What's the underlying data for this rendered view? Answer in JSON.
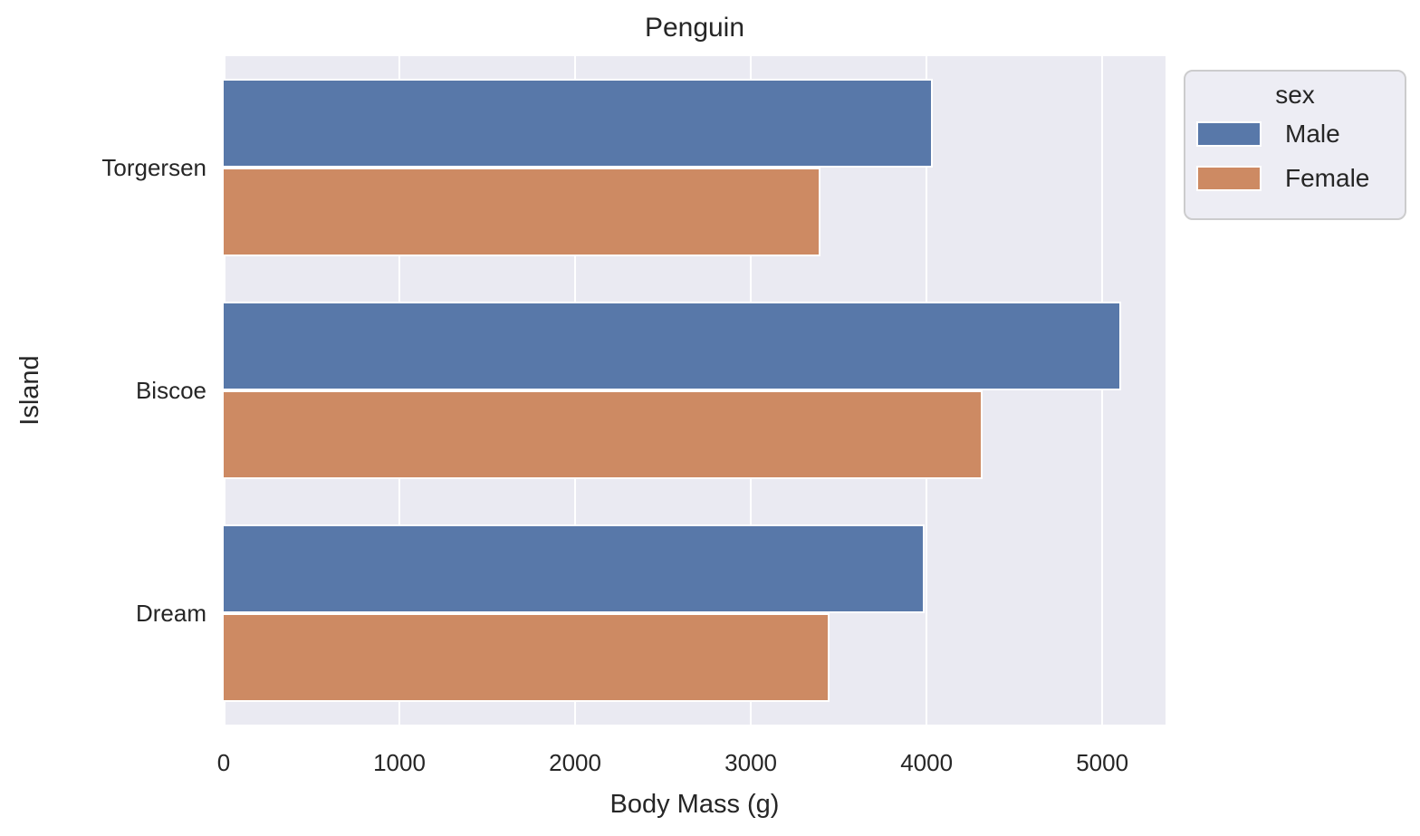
{
  "chart_data": {
    "type": "bar",
    "orientation": "horizontal",
    "title": "Penguin",
    "xlabel": "Body Mass (g)",
    "ylabel": "Island",
    "categories": [
      "Torgersen",
      "Biscoe",
      "Dream"
    ],
    "series": [
      {
        "name": "Male",
        "color": "#5878a9",
        "values": [
          4035,
          5105,
          3987
        ]
      },
      {
        "name": "Female",
        "color": "#cd8a63",
        "values": [
          3396,
          4319,
          3446
        ]
      }
    ],
    "xlim": [
      0,
      5360
    ],
    "xticks": [
      0,
      1000,
      2000,
      3000,
      4000,
      5000
    ],
    "xtick_labels": [
      "0",
      "1000",
      "2000",
      "3000",
      "4000",
      "5000"
    ],
    "grid": true,
    "grid_color": "#ffffff",
    "plot_background": "#eaeaf2",
    "legend": {
      "title": "sex",
      "entries": [
        "Male",
        "Female"
      ],
      "position": "upper-right-outside"
    }
  }
}
